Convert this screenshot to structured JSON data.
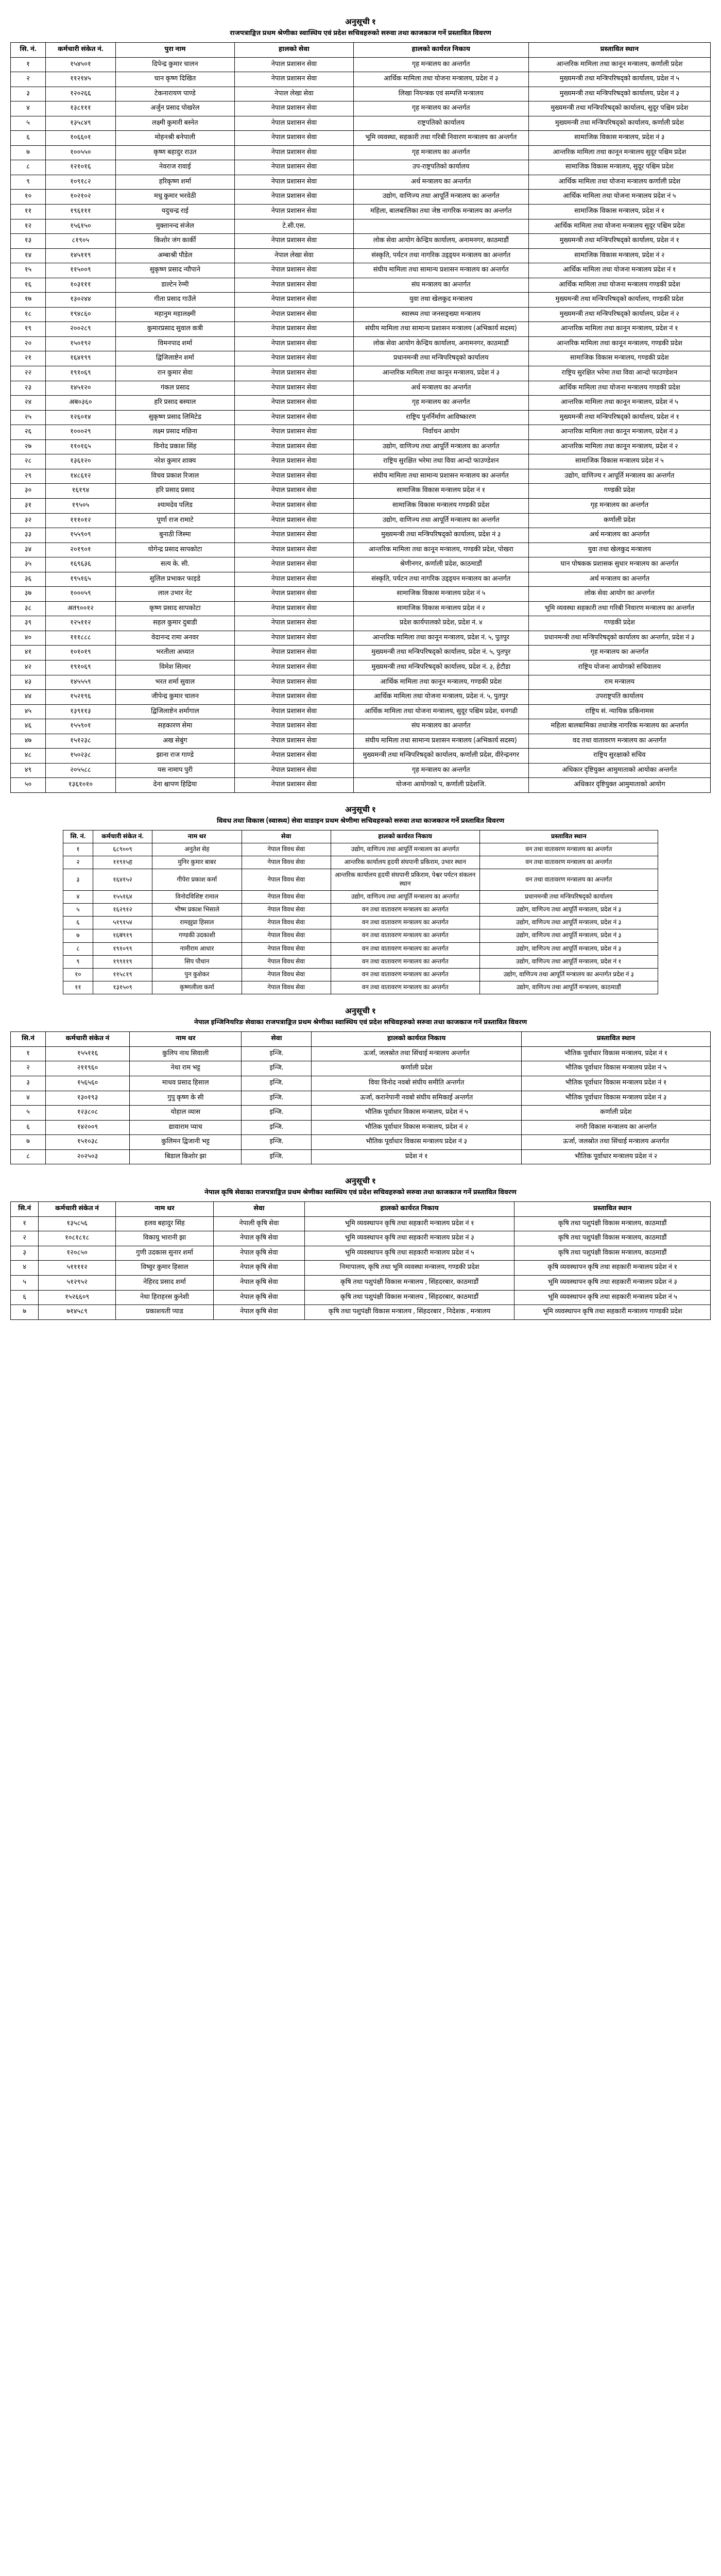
{
  "tables": [
    {
      "title": "अनुसूची १",
      "subtitle": "राजपत्राङ्कित प्रथम श्रेणीका स्वास्थिय एवं प्रदेश सचिवहरुको सरुवा तथा काजकाज गर्ने प्रस्तावित विवरण",
      "class": "t1",
      "headers": [
        "सि. नं.",
        "कर्मचारी संकेत नं.",
        "पुरा नाम",
        "हालको सेवा",
        "हालको कार्यरत निकाय",
        "प्रस्तावित स्थान"
      ],
      "rows": [
        [
          "१",
          "१५४५०१",
          "दिपेन्द्र कुमार चालन",
          "नेपाल प्रशासन सेवा",
          "गृह मन्त्रालय का अन्तर्गत",
          "आन्तरिक मामिला तथा कानून मन्त्रालय, कर्णाली प्रदेश"
        ],
        [
          "२",
          "११२१४५",
          "चान कृष्ण दिखित",
          "नेपाल प्रशासन सेवा",
          "आर्थिक मामिला तथा योजना मन्त्रालय, प्रदेश नं ३",
          "मुख्यमन्त्री तथा मन्त्रिपरिषद्को कार्यालय, प्रदेश नं ५"
        ],
        [
          "३",
          "१२०२६६",
          "टेकनारायण पाण्डे",
          "नेपाल लेखा सेवा",
          "लिखा नियन्त्रक एवं सम्पत्ति मन्त्रालय",
          "मुख्यमन्त्री तथा मन्त्रिपरिषद्को कार्यालय, प्रदेश नं ३"
        ],
        [
          "४",
          "१३८१११",
          "अर्जुन प्रसाद पोखरेल",
          "नेपाल प्रशासन सेवा",
          "गृह मन्त्रालय का अन्तर्गत",
          "मुख्यमन्त्री तथा मन्त्रिपरिषद्को कार्यालय, सुदूर पश्चिम प्रदेश"
        ],
        [
          "५",
          "१३५८४९",
          "लक्ष्मी कुमारी बस्नेत",
          "नेपाल प्रशासन सेवा",
          "राष्ट्रपतिको कार्यालय",
          "मुख्यमन्त्री तथा मन्त्रिपरिषद्को कार्यालय, कर्णाली प्रदेश"
        ],
        [
          "६",
          "१०६६०१",
          "मोहनश्री बनेपाली",
          "नेपाल प्रशासन सेवा",
          "भूमि व्यवस्था, सहकारी तथा गरिबी निवारण मन्त्रालय का अन्तर्गत",
          "सामाजिक विकास मन्त्रालय, प्रदेश नं ३"
        ],
        [
          "७",
          "१००५५०",
          "कृष्ण बहादुर राउत",
          "नेपाल प्रशासन सेवा",
          "गृह मन्त्रालय का अन्तर्गत",
          "आन्तरिक मामिला तथा कानून मन्त्रालय सुदूर पश्चिम प्रदेश"
        ],
        [
          "८",
          "१२१०१६",
          "नेवराज रावाई",
          "नेपाल प्रशासन सेवा",
          "उप-राष्ट्रपतिको कार्यालय",
          "सामाजिक विकास मन्त्रालय, सुदूर पश्चिम प्रदेश"
        ],
        [
          "९",
          "१०९१८२",
          "हरिकृष्ण शर्मा",
          "नेपाल प्रशासन सेवा",
          "अर्थ मन्त्रालय का अन्तर्गत",
          "आर्थिक मामिला तथा योजना मन्त्रालय कर्णाली प्रदेश"
        ],
        [
          "१०",
          "१०२१०२",
          "मधु कुमार भरवेठी",
          "नेपाल प्रशासन सेवा",
          "उद्योग, वाणिज्य तथा आपूर्ति मन्त्रालय का अन्तर्गत",
          "आर्थिक मामिला तथा योजना मन्त्रालय प्रदेश नं ५"
        ],
        [
          "११",
          "१९६१११",
          "यदुचन्द्र राई",
          "नेपाल प्रशासन सेवा",
          "महिला, बालबालिका तथा जेष्ठ नागरिक मन्त्रालय का अन्तर्गत",
          "सामाजिक विकास मन्त्रालय, प्रदेश नं १"
        ],
        [
          "१२",
          "१५६१५०",
          "मुक्तानन्द संजेल",
          "टे.सी.एस.",
          "",
          "आर्थिक मामिला तथा योजना मन्त्रालय सुदूर पश्चिम प्रदेश"
        ],
        [
          "१३",
          "८१९०५",
          "किशोर जंग कार्की",
          "नेपाल प्रशासन सेवा",
          "लोक सेवा आयोग केन्द्रिय कार्यालय, अनामनगर, काठमाडौं",
          "मुख्यमन्त्री तथा मन्त्रिपरिषद्को कार्यालय, प्रदेश नं १"
        ],
        [
          "१४",
          "१४५११९",
          "अम्बाश्री पौडेल",
          "नेपाल लेखा सेवा",
          "संस्कृति, पर्यटन तथा नागरिक उड्ड्यन मन्त्रालय का अन्तर्गत",
          "सामाजिक विकास मन्त्रालय, प्रदेश नं २"
        ],
        [
          "१५",
          "११५००९",
          "सुकृष्ण प्रसाद न्यौपाने",
          "नेपाल प्रशासन सेवा",
          "संघीय मामिला तथा सामान्य प्रशासन मन्त्रालय का अन्तर्गत",
          "आर्थिक मामिला तथा योजना मन्त्रालय प्रदेश नं १"
        ],
        [
          "१६",
          "१०३१११",
          "डाल्टेन रेग्मी",
          "नेपाल प्रशासन सेवा",
          "संघ मन्त्रालय का अन्तर्गत",
          "आर्थिक मामिला तथा योजना मन्त्रालय गण्डकी प्रदेश"
        ],
        [
          "१७",
          "१३०२४४",
          "गीता प्रसाद गाउँले",
          "नेपाल प्रशासन सेवा",
          "युवा तथा खेलकुद मन्त्रालय",
          "मुख्यमन्त्री तथा मन्त्रिपरिषद्को कार्यालय, गण्डकी प्रदेश"
        ],
        [
          "१८",
          "१९४८६०",
          "महानुम महालक्ष्मी",
          "नेपाल प्रशासन सेवा",
          "स्वास्थ्य तथा जनसङ्ख्या मन्त्रालय",
          "मुख्यमन्त्री तथा मन्त्रिपरिषद्को कार्यालय, प्रदेश नं २"
        ],
        [
          "१९",
          "२००२८९",
          "कुमारप्रसाद सुवाल कत्री",
          "नेपाल प्रशासन सेवा",
          "संघीय मामिला तथा सामान्य प्रशासन मन्त्रालय (अभिकार्य सदस्य)",
          "आन्तरिक मामिला तथा कानून मन्त्रालय, प्रदेश नं १"
        ],
        [
          "२०",
          "१५०१९२",
          "विमनपाद शर्मा",
          "नेपाल प्रशासन सेवा",
          "लोक सेवा आयोग केन्द्रिय कार्यालय, अनामनगर, काठमाडौं",
          "आन्तरिक मामिला तथा कानून मन्त्रालय, गण्डकी प्रदेश"
        ],
        [
          "२१",
          "१६४१९९",
          "द्विजिलाष्टेन शर्मा",
          "नेपाल प्रशासन सेवा",
          "प्रधानमन्त्री तथा मन्त्रिपरिषद्को कार्यालय",
          "सामाजिक विकास मन्त्रालय, गण्डकी प्रदेश"
        ],
        [
          "२२",
          "१९१०६९",
          "रान कुमार सेवा",
          "नेपाल प्रशासन सेवा",
          "आन्तरिक मामिला तथा कानून मन्त्रालय, प्रदेश नं ३",
          "राष्ट्रिय सुरक्षित भरेमा तथा विवा आन्दो फाउण्डेशन"
        ],
        [
          "२३",
          "१४५१२०",
          "गंकल प्रसाद",
          "नेपाल प्रशासन सेवा",
          "अर्थ मन्त्रालय का अन्तर्गत",
          "आर्थिक मामिला तथा योजना मन्त्रालय गण्डकी प्रदेश"
        ],
        [
          "२४",
          "अब०३६०",
          "हरि प्रसाद बस्याल",
          "नेपाल प्रशासन सेवा",
          "गृह मन्त्रालय का अन्तर्गत",
          "आन्तरिक मामिला तथा कानून मन्त्रालय, प्रदेश नं ५"
        ],
        [
          "२५",
          "१२६०१४",
          "सुकृष्ण प्रसाद लिमिटेड",
          "नेपाल प्रशासन सेवा",
          "राष्ट्रिय पुनर्निर्माण आविष्कारण",
          "मुख्यमन्त्री तथा मन्त्रिपरिषद्को कार्यालय, प्रदेश नं १"
        ],
        [
          "२६",
          "१०००२९",
          "लक्ष्म प्रसाद मछिना",
          "नेपाल प्रशासन सेवा",
          "निर्वाचन आयोग",
          "आन्तरिक मामिला तथा कानून मन्त्रालय, प्रदेश नं ३"
        ],
        [
          "२७",
          "११०१६५",
          "विनोद प्रकाश सिंह",
          "नेपाल प्रशासन सेवा",
          "उद्योग, वाणिज्य तथा आपूर्ति मन्त्रालय का अन्तर्गत",
          "आन्तरिक मामिला तथा कानून मन्त्रालय, प्रदेश नं २"
        ],
        [
          "२८",
          "१३६१२०",
          "नरेश कुमार शाक्य",
          "नेपाल प्रशासन सेवा",
          "राष्ट्रिय सुरक्षित भरेमा तथा विवा आन्दो फाउण्डेशन",
          "सामाजिक विकास मन्त्रालय प्रदेश नं ५"
        ],
        [
          "२९",
          "१४८६१२",
          "विचव प्रकाश रिजाल",
          "नेपाल प्रशासन सेवा",
          "संघीय मामिला तथा सामान्य प्रशासन मन्त्रालय का अन्तर्गत",
          "उद्योग, वाणिज्य र आपूर्ति मन्त्रालय का अन्तर्गत"
        ],
        [
          "३०",
          "१६१९४",
          "हरि प्रसाद प्रसाद",
          "नेपाल प्रशासन सेवा",
          "सामाजिक विकास मन्त्रालय प्रदेश नं १",
          "गण्डकी प्रदेश"
        ],
        [
          "३१",
          "१९५०५",
          "श्यामदेव पलिड",
          "नेपाल प्रशासन सेवा",
          "सामाजिक विकास मन्त्रालय गण्डकी प्रदेश",
          "गृह मन्त्रालय का अन्तर्गत"
        ],
        [
          "३२",
          "१११०१२",
          "पूर्णा राज रामाटे",
          "नेपाल प्रशासन सेवा",
          "उद्योग, वाणिज्य तथा आपूर्ति मन्त्रालय का अन्तर्गत",
          "कर्णाली प्रदेश"
        ],
        [
          "३३",
          "१५५९०९",
          "बुनाठी जिस्मा",
          "नेपाल प्रशासन सेवा",
          "मुख्यमन्त्री तथा मन्त्रिपरिषद्को कार्यालय, प्रदेश नं ३",
          "अर्थ मन्त्रालय का अन्तर्गत"
        ],
        [
          "३४",
          "२०१९०१",
          "योगेन्द्र प्रसाद सापकोटा",
          "नेपाल प्रशासन सेवा",
          "आन्तरिक मामिला तथा कानून मन्त्रालय, गण्डकी प्रदेश, पोखरा",
          "युवा तथा खेलकुद मन्त्रालय"
        ],
        [
          "३५",
          "१६९६३६",
          "सत्य के. सी.",
          "नेपाल प्रशासन सेवा",
          "श्रेणीनगर, कर्णाली प्रदेश, काठमाडौं",
          "घान पोषकक प्रशासक सुधार मन्त्रालय का अन्तर्गत"
        ],
        [
          "३६",
          "१९५१६५",
          "सुलिल प्रभाकर फाइडे",
          "नेपाल प्रशासन सेवा",
          "संस्कृति, पर्यटन तथा नागरिक उड्ड्यन मन्त्रालय का अन्तर्गत",
          "अर्थ मन्त्रालय का अन्तर्गत"
        ],
        [
          "३७",
          "१०००५९",
          "लाल उभार नेट",
          "नेपाल प्रशासन सेवा",
          "सामाजिक विकास मन्त्रालय प्रदेश नं ५",
          "लोक सेवा आयोग का अन्तर्गत"
        ],
        [
          "३८",
          "अत९००१२",
          "कृष्ण प्रसाद सापकोटा",
          "नेपाल प्रशासन सेवा",
          "सामाजिक विकास मन्त्रालय प्रदेश नं २",
          "भूमि व्यवस्था सहकारी तथा गरिबी निवारण मन्त्रालय का अन्तर्गत"
        ],
        [
          "३९",
          "१२५११२",
          "सहल कुमार दुबाडी",
          "नेपाल प्रशासन सेवा",
          "प्रदेश कार्यपालको प्रदेश, प्रदेश नं. ४",
          "गण्डकी प्रदेश"
        ],
        [
          "४०",
          "१११८८८",
          "वेदानन्द रामा अनवर",
          "नेपाल प्रशासन सेवा",
          "आन्तरिक मामिला तथा कानून मन्त्रालय, प्रदेश नं. ५, पुतपुर",
          "प्रधानमन्त्री तथा मन्त्रिपरिषद्को कार्यालय का अन्तर्गत, प्रदेश नं ३"
        ],
        [
          "४१",
          "१०१०१९",
          "भरतीला अध्यात",
          "नेपाल प्रशासन सेवा",
          "मुख्यमन्त्री तथा मन्त्रिपरिषद्को कार्यालय, प्रदेश नं. ५, पुतपुर",
          "गृह मन्त्रालय का अन्तर्गत"
        ],
        [
          "४२",
          "१९१०६९",
          "विमेश सिल्वर",
          "नेपाल प्रशासन सेवा",
          "मुख्यमन्त्री तथा मन्त्रिपरिषद्को कार्यालय, प्रदेश नं. ३, हेटौडा",
          "राष्ट्रिय योजना आयोगको सचिवालय"
        ],
        [
          "४३",
          "१४५५५९",
          "भरत शर्मा सुवाल",
          "नेपाल प्रशासन सेवा",
          "आर्थिक मामिला तथा कानून मन्त्रालय, गण्डकी प्रदेश",
          "राम मन्त्रालय"
        ],
        [
          "४४",
          "१५२१९६",
          "जीपेन्द्र कुमार चालन",
          "नेपाल प्रशासन सेवा",
          "आर्थिक मामिला तथा योजना मन्त्रालय, प्रदेश नं. ५, पुतपुर",
          "उपराष्ट्रपति कार्यालय"
        ],
        [
          "४५",
          "१३९११३",
          "द्विजिलाष्टेन शर्मागाल",
          "नेपाल प्रशासन सेवा",
          "आर्थिक मामिला तथा योजना मन्त्रालय, सुदूर पश्चिम प्रदेश, धनगढी",
          "राष्ट्रिय सं. न्यायिक प्रकिनामस"
        ],
        [
          "४६",
          "१५५९०१",
          "सहकारण सेमा",
          "नेपाल प्रशासन सेवा",
          "संघ मन्त्रालय का अन्तर्गत",
          "महिला बालबामिका तथाजेष्ठ नागरिक मन्त्रालय का अन्तर्गत"
        ],
        [
          "४७",
          "१५१२३८",
          "अख सेबुंग",
          "नेपाल प्रशासन सेवा",
          "संघीय मामिला तथा सामान्य प्रशासन मन्त्रालय (अभिकार्य सदस्य)",
          "वद तथा वातावरण मन्त्रालय का अन्तर्गत"
        ],
        [
          "४८",
          "१५०२३८",
          "झाना राज गाण्डे",
          "नेपाल प्रशासन सेवा",
          "मुख्यमन्त्री तथा मन्त्रिपरिषद्को कार्यालय, कर्णाली प्रदेश, वीरेन्द्रनगर",
          "राष्ट्रिय सुरक्षाको सचिव"
        ],
        [
          "४९",
          "२०५५८८",
          "यस नामाप पुरी",
          "नेपाल प्रशासन सेवा",
          "गृह मन्त्रालय का अन्तर्गत",
          "अधिकार दृष्टियुक्त आमुमाताको आयोका अन्तर्गत"
        ],
        [
          "५०",
          "१३६१०१०",
          "देना श्चापण हिद्रिया",
          "नेपाल प्रशासन सेवा",
          "योजना आयोगको प, कर्णाली प्रदेशजि.",
          "अधिकार दृष्टियुक्त आमुमाताको आयोग"
        ]
      ]
    },
    {
      "title": "अनुसूची १",
      "subtitle": "विवध तथा विकास (स्वास्थ्य) सेवा वाडाइन प्रथम श्रेणीमा सचिवहरुको सरुवा तथा काजकाज गर्ने प्रस्तावित विवरण",
      "class": "t2",
      "headers": [
        "सि. नं.",
        "कर्मचारी संकेत नं.",
        "नाम थर",
        "सेवा",
        "हालको कार्यरत निकाय",
        "प्रस्तावित स्थान"
      ],
      "rows": [
        [
          "१",
          "६८९००९",
          "अनुतेश सेह",
          "नेपाल विवध सेवा",
          "उद्योग, वाणिज्य तथा आपूर्ति मन्त्रालय का अन्तर्गत",
          "वन तथा वातावरण मन्त्रालय का अन्तर्गत"
        ],
        [
          "२",
          "११९१५ह",
          "मुनिर कुमार बाबर",
          "नेपाल विवध सेवा",
          "आन्तरिक कार्यालय हृदयी संघपानी प्रकिराम, उभार स्थान",
          "वन तथा वातावरण मन्त्रालय का अन्तर्गत"
        ],
        [
          "३",
          "१६४१५२",
          "गीपेरा प्रकाश कर्मा",
          "नेपाल विवध सेवा",
          "आन्तरिक कार्यालय हृदयी संघपानी प्रकिराम, पेश्वर पर्यटन संकलन स्थान",
          "वन तथा वातावरण मन्त्रालय का अन्तर्गत"
        ],
        [
          "४",
          "१५५१६४",
          "विनोदविशिष्ट रामाल",
          "नेपाल विवध सेवा",
          "उद्योग, वाणिज्य तथा आपूर्ति मन्त्रालय का अन्तर्गत",
          "प्रधानमन्त्री तथा मन्त्रिपरिषद्को कार्यालय"
        ],
        [
          "५",
          "१६२९१२",
          "भीष्म प्रकाश भिसाले",
          "नेपाल विवध सेवा",
          "वन तथा वातावरण मन्त्रालय का अन्तर्गत",
          "उद्योग, वाणिज्य तथा आपूर्ति मन्त्रालय, प्रदेश नं ३"
        ],
        [
          "६",
          "५१९१५४",
          "रामझुप्रा हिसाल",
          "नेपाल विवध सेवा",
          "वन तथा वातावरण मन्त्रालय का अन्तर्गत",
          "उद्योग, वाणिज्य तथा आपूर्ति मन्त्रालय, प्रदेश नं ३"
        ],
        [
          "७",
          "१६ब९१९",
          "गण्डकी उदकाशी",
          "नेपाल विवध सेवा",
          "वन तथा वातावरण मन्त्रालय का अन्तर्गत",
          "उद्योग, वाणिज्य तथा आपूर्ति मन्त्रालय, प्रदेश नं ३"
        ],
        [
          "८",
          "१९१०९९",
          "नामीराम आधार",
          "नेपाल विवध सेवा",
          "वन तथा वातावरण मन्त्रालय का अन्तर्गत",
          "उद्योग, वाणिज्य तथा आपूर्ति मन्त्रालय, प्रदेश नं ३"
        ],
        [
          "९",
          "१९९११९",
          "सिप पौधान",
          "नेपाल विवध सेवा",
          "वन तथा वातावरण मन्त्रालय का अन्तर्गत",
          "उद्योग, वाणिज्य तथा आपूर्ति मन्त्रालय, प्रदेश नं १"
        ],
        [
          "१०",
          "११५८१९",
          "पुन कुशेकर",
          "नेपाल विवध सेवा",
          "वन तथा वातावरण मन्त्रालय का अन्तर्गत",
          "उद्योग, वाणिज्य तथा आपूर्ति मन्त्रालय का अन्तर्गत प्रदेश नं ३"
        ],
        [
          "११",
          "१३१५०९",
          "कृष्णलीला कर्मा",
          "नेपाल विवध सेवा",
          "वन तथा वातावरण मन्त्रालय का अन्तर्गत",
          "उद्योग, वाणिज्य तथा आपूर्ति मन्त्रालय, काठमाडौं"
        ]
      ]
    },
    {
      "title": "अनुसूची १",
      "subtitle": "नेपाल इन्जिनियरिङ सेवाका राजपत्राङ्कित प्रथम श्रेणीका स्वास्थिय एवं प्रदेश सचिवहरुको सरुवा तथा काजकाज गर्ने प्रस्तावित विवरण",
      "class": "t3",
      "headers": [
        "सि.नं",
        "कर्मचारी संकेत नं",
        "नाम थर",
        "सेवा",
        "हालको कार्यरत निकाय",
        "प्रस्तावित स्थान"
      ],
      "rows": [
        [
          "१",
          "१५५११६",
          "कुलिप नाथ सिवाली",
          "इन्जि.",
          "ऊर्जा, जलस्रोत तथा सिंचाई मन्त्रालय अन्तर्गत",
          "भौतिक पूर्वाधार विकास मन्त्रालय, प्रदेश नं १"
        ],
        [
          "२",
          "२११९६०",
          "नेथा राम भट्ट",
          "इन्जि.",
          "कर्णाली प्रदेश",
          "भौतिक पूर्वाधार विकास मन्त्रालय प्रदेश नं ५"
        ],
        [
          "३",
          "१५६५६०",
          "माधव प्रसाद हिसाल",
          "इन्जि.",
          "विवा विनोद नवबो संघीय समीति अन्तर्गत",
          "भौतिक पूर्वाधार विकास मन्त्रालय प्रदेश नं १"
        ],
        [
          "४",
          "१३०१९३",
          "गुपु कृष्ण के सी",
          "इन्जि.",
          "ऊर्जा, करानेपानी नवबो संघीय समिकाई अन्तर्गत",
          "भौतिक पूर्वाधार विकास मन्त्रालय प्रदेश नं ३"
        ],
        [
          "५",
          "१२३८०८",
          "योहाल व्यास",
          "इन्जि.",
          "भौतिक पूर्वाधार विकास मन्त्रालय, प्रदेश नं ५",
          "कर्णाली प्रदेश"
        ],
        [
          "६",
          "१४२००९",
          "द्यावाराम प्याच",
          "इन्जि.",
          "भौतिक पूर्वाधार विकास मन्त्रालय, प्रदेश नं २",
          "नगरी विकास मन्त्रालय का अन्तर्गत"
        ],
        [
          "७",
          "१५१०३८",
          "कुलिमन द्विजानी भट्ट",
          "इन्जि.",
          "भौतिक पूर्वाधार विकास मन्त्रालय प्रदेश नं ३",
          "ऊर्जा, जलस्रोत तथा सिंचाई मन्त्रालय अन्तर्गत"
        ],
        [
          "८",
          "२०२५०३",
          "बिडाल किशोर झा",
          "इन्जि.",
          "प्रदेश नं १",
          "भौतिक पूर्वाधार मन्त्रालय प्रदेश नं २"
        ]
      ]
    },
    {
      "title": "अनुसूची १",
      "subtitle": "नेपाल कृषि सेवाका राजपत्राङ्कित प्रथम श्रेणीका स्वास्थिय एवं प्रदेश सचिवहरुको सरुवा तथा काजकाज गर्ने प्रस्तावित विवरण",
      "class": "t4",
      "headers": [
        "सि.नं",
        "कर्मचारी संकेत नं",
        "नाम थर",
        "सेवा",
        "हालको कार्यरत निकाय",
        "प्रस्तावित स्थान"
      ],
      "rows": [
        [
          "१",
          "१३५८५६",
          "हलव बहादुर सिंह",
          "नेपाली कृषि सेवा",
          "भूमि व्यवस्थापन कृषि तथा सहकारी मन्त्रालय प्रदेश नं १",
          "कृषि तथा पशुपंक्षी विकास मन्त्रालय, काठमाडौं"
        ],
        [
          "२",
          "१०८१८१८",
          "विकायु भारानी झा",
          "नेपाल कृषि सेवा",
          "भूमि व्यवस्थापन कृषि तथा सहकारी मन्त्रालय प्रदेश नं ३",
          "कृषि तथा पशुपंक्षी विकास मन्त्रालय, काठमाडौं"
        ],
        [
          "३",
          "१२०८५०",
          "गुणी उदकास सुनार शर्मा",
          "नेपाल कृषि सेवा",
          "भूमि व्यवस्थापन कृषि तथा सहकारी मन्त्रालय प्रदेश नं ५",
          "कृषि तथा पशुपंक्षी विकास मन्त्रालय, काठमाडौं"
        ],
        [
          "४",
          "५११११२",
          "विष्वुर कुमार हिसाल",
          "नेपाल कृषि सेवा",
          "निमापालय, कृषि तथा भूमि व्यवस्था मन्त्रालय, गण्डकी प्रदेश",
          "कृषि व्यवस्थापन कृषि तथा सहकारी मन्त्रालय प्रदेश नं १"
        ],
        [
          "५",
          "५१२९५२",
          "नेहिरद प्रसाद शर्मा",
          "नेपाल कृषि सेवा",
          "कृषि तथा पशुपंक्षी विकास मन्त्रालय , सिंहदरबार, काठमाडौं",
          "भूमि व्यवस्थापन  कृषि तथा सहकारी मन्त्रालय प्रदेश नं ३"
        ],
        [
          "६",
          "१५२६६०९",
          "नेथा हिराहरस कुनेशी",
          "नेपाल कृषि सेवा",
          "कृषि तथा पशुपंक्षी विकास मन्त्रालय , सिंहदरबार, काठमाडौं",
          "भूमि व्यवस्थापन कृषि तथा सहकारी मन्त्रालय प्रदेश नं ५"
        ],
        [
          "७",
          "७१४५८९",
          "प्रकाशयती प्याड",
          "नेपाल कृषि सेवा",
          "कृषि तथा पशुपंक्षी विकास मन्त्रालय , सिंहदरबार , निदेशक ,  मन्त्रालय",
          "भूमि व्यवस्थापन कृषि तथा सहकारी मन्त्रालय गाण्डकी प्रदेश"
        ]
      ]
    }
  ]
}
